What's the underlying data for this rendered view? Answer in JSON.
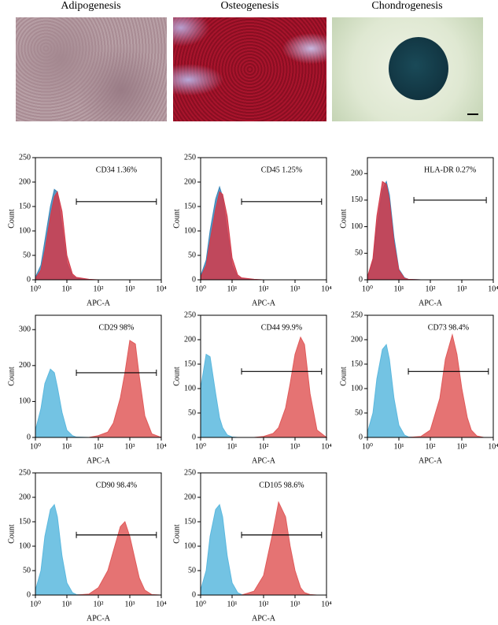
{
  "images": [
    {
      "title": "Adipogenesis"
    },
    {
      "title": "Osteogenesis"
    },
    {
      "title": "Chondrogenesis"
    }
  ],
  "chart_data": [
    {
      "type": "area",
      "annotation": "CD34 1.36%",
      "xlabel": "APC-A",
      "ylabel": "Count",
      "xscale": "log",
      "x": [
        1,
        1.5,
        2,
        3,
        4,
        5,
        7,
        10,
        15,
        20,
        50,
        100,
        200,
        300,
        500,
        700,
        1000,
        1500,
        2000,
        3000,
        5000,
        10000
      ],
      "series": [
        {
          "color": "#3a86b8",
          "values": [
            5,
            30,
            80,
            150,
            185,
            180,
            110,
            35,
            8,
            3,
            0,
            0,
            0,
            0,
            0,
            0,
            0,
            0,
            0,
            0,
            0,
            0
          ]
        },
        {
          "color": "#d23a4a",
          "values": [
            3,
            20,
            60,
            130,
            170,
            180,
            140,
            50,
            12,
            5,
            1,
            0,
            0,
            0,
            0,
            0,
            0,
            0,
            0,
            0,
            0,
            0
          ]
        }
      ],
      "gate": {
        "x": [
          20,
          7000
        ],
        "y": 160
      },
      "xlim": [
        1,
        10000
      ],
      "xticks": [
        {
          "value": 1,
          "label": "10⁰"
        },
        {
          "value": 10,
          "label": "10¹"
        },
        {
          "value": 100,
          "label": "10²"
        },
        {
          "value": 1000,
          "label": "10³"
        },
        {
          "value": 10000,
          "label": "10⁴"
        }
      ],
      "ylim": [
        0,
        250
      ],
      "yticks": [
        0,
        50,
        100,
        150,
        200,
        250
      ]
    },
    {
      "type": "area",
      "annotation": "CD45 1.25%",
      "xlabel": "APC-A",
      "ylabel": "Count",
      "xscale": "log",
      "x": [
        1,
        1.5,
        2,
        3,
        4,
        5,
        7,
        10,
        15,
        20,
        50,
        100,
        200,
        300,
        500,
        700,
        1000,
        1500,
        2000,
        3000,
        5000,
        10000
      ],
      "series": [
        {
          "color": "#3a86b8",
          "values": [
            8,
            40,
            100,
            165,
            190,
            170,
            100,
            30,
            6,
            2,
            0,
            0,
            0,
            0,
            0,
            0,
            0,
            0,
            0,
            0,
            0,
            0
          ]
        },
        {
          "color": "#d23a4a",
          "values": [
            5,
            30,
            80,
            145,
            180,
            175,
            130,
            45,
            10,
            4,
            1,
            0,
            0,
            0,
            0,
            0,
            0,
            0,
            0,
            0,
            0,
            0
          ]
        }
      ],
      "gate": {
        "x": [
          20,
          7000
        ],
        "y": 160
      },
      "xlim": [
        1,
        10000
      ],
      "xticks": [
        {
          "value": 1,
          "label": "10⁰"
        },
        {
          "value": 10,
          "label": "10¹"
        },
        {
          "value": 100,
          "label": "10²"
        },
        {
          "value": 1000,
          "label": "10³"
        },
        {
          "value": 10000,
          "label": "10⁴"
        }
      ],
      "ylim": [
        0,
        250
      ],
      "yticks": [
        0,
        50,
        100,
        150,
        200,
        250
      ]
    },
    {
      "type": "area",
      "annotation": "HLA-DR 0.27%",
      "xlabel": "APC-A",
      "ylabel": "Count",
      "xscale": "log",
      "x": [
        1,
        1.5,
        2,
        3,
        4,
        5,
        7,
        10,
        15,
        20,
        50,
        100,
        200,
        300,
        500,
        700,
        1000,
        1500,
        2000,
        3000,
        5000,
        10000
      ],
      "series": [
        {
          "color": "#3a86b8",
          "values": [
            5,
            35,
            100,
            170,
            185,
            160,
            80,
            20,
            4,
            1,
            0,
            0,
            0,
            0,
            0,
            0,
            0,
            0,
            0,
            0,
            0,
            0
          ]
        },
        {
          "color": "#d23a4a",
          "values": [
            5,
            40,
            120,
            185,
            180,
            150,
            70,
            18,
            3,
            1,
            0,
            0,
            0,
            0,
            0,
            0,
            0,
            0,
            0,
            0,
            0,
            0
          ]
        }
      ],
      "gate": {
        "x": [
          30,
          6000
        ],
        "y": 150
      },
      "xlim": [
        1,
        10000
      ],
      "xticks": [
        {
          "value": 1,
          "label": "10⁰"
        },
        {
          "value": 10,
          "label": "10¹"
        },
        {
          "value": 100,
          "label": "10²"
        },
        {
          "value": 1000,
          "label": "10³"
        },
        {
          "value": 10000,
          "label": "10⁴"
        }
      ],
      "ylim": [
        0,
        230
      ],
      "yticks": [
        0,
        50,
        100,
        150,
        200
      ]
    },
    {
      "type": "area",
      "annotation": "CD29 98%",
      "xlabel": "APC-A",
      "ylabel": "Count",
      "xscale": "log",
      "x": [
        1,
        1.5,
        2,
        3,
        4,
        5,
        7,
        10,
        15,
        20,
        50,
        100,
        200,
        300,
        500,
        700,
        1000,
        1500,
        2000,
        3000,
        5000,
        10000
      ],
      "series": [
        {
          "color": "#5bb8de",
          "values": [
            20,
            80,
            150,
            190,
            180,
            140,
            70,
            20,
            5,
            1,
            0,
            0,
            0,
            0,
            0,
            0,
            0,
            0,
            0,
            0,
            0,
            0
          ]
        },
        {
          "color": "#e05a5a",
          "values": [
            0,
            0,
            0,
            0,
            0,
            0,
            0,
            0,
            0,
            0,
            0,
            5,
            15,
            40,
            110,
            180,
            270,
            260,
            170,
            60,
            10,
            0
          ]
        }
      ],
      "gate": {
        "x": [
          20,
          7000
        ],
        "y": 180
      },
      "xlim": [
        1,
        10000
      ],
      "xticks": [
        {
          "value": 1,
          "label": "10⁰"
        },
        {
          "value": 10,
          "label": "10¹"
        },
        {
          "value": 100,
          "label": "10²"
        },
        {
          "value": 1000,
          "label": "10³"
        },
        {
          "value": 10000,
          "label": "10⁴"
        }
      ],
      "ylim": [
        0,
        340
      ],
      "yticks": [
        0,
        100,
        200,
        300
      ]
    },
    {
      "type": "area",
      "annotation": "CD44 99.9%",
      "xlabel": "APC-A",
      "ylabel": "Count",
      "xscale": "log",
      "x": [
        1,
        1.5,
        2,
        3,
        4,
        5,
        7,
        10,
        15,
        20,
        50,
        100,
        200,
        300,
        500,
        700,
        1000,
        1500,
        2000,
        3000,
        5000,
        10000
      ],
      "series": [
        {
          "color": "#5bb8de",
          "values": [
            100,
            170,
            165,
            90,
            40,
            20,
            5,
            1,
            0,
            0,
            0,
            0,
            0,
            0,
            0,
            0,
            0,
            0,
            0,
            0,
            0,
            0
          ]
        },
        {
          "color": "#e05a5a",
          "values": [
            0,
            0,
            0,
            0,
            0,
            0,
            0,
            0,
            0,
            0,
            0,
            2,
            8,
            20,
            60,
            110,
            170,
            205,
            190,
            90,
            15,
            0
          ]
        }
      ],
      "gate": {
        "x": [
          20,
          7000
        ],
        "y": 135
      },
      "xlim": [
        1,
        10000
      ],
      "xticks": [
        {
          "value": 1,
          "label": "10⁰"
        },
        {
          "value": 10,
          "label": "10¹"
        },
        {
          "value": 100,
          "label": "10²"
        },
        {
          "value": 1000,
          "label": "10³"
        },
        {
          "value": 10000,
          "label": "10⁴"
        }
      ],
      "ylim": [
        0,
        250
      ],
      "yticks": [
        0,
        50,
        100,
        150,
        200,
        250
      ]
    },
    {
      "type": "area",
      "annotation": "CD73 98.4%",
      "xlabel": "APC-A",
      "ylabel": "Count",
      "xscale": "log",
      "x": [
        1,
        1.5,
        2,
        3,
        4,
        5,
        7,
        10,
        15,
        20,
        50,
        100,
        200,
        300,
        500,
        700,
        1000,
        1500,
        2000,
        3000,
        5000,
        10000
      ],
      "series": [
        {
          "color": "#5bb8de",
          "values": [
            10,
            50,
            120,
            180,
            190,
            160,
            80,
            25,
            5,
            1,
            0,
            0,
            0,
            0,
            0,
            0,
            0,
            0,
            0,
            0,
            0,
            0
          ]
        },
        {
          "color": "#e05a5a",
          "values": [
            0,
            0,
            0,
            0,
            0,
            0,
            0,
            0,
            0,
            0,
            2,
            15,
            80,
            160,
            210,
            170,
            100,
            40,
            15,
            3,
            0,
            0
          ]
        }
      ],
      "gate": {
        "x": [
          20,
          7000
        ],
        "y": 135
      },
      "xlim": [
        1,
        10000
      ],
      "xticks": [
        {
          "value": 1,
          "label": "10⁰"
        },
        {
          "value": 10,
          "label": "10¹"
        },
        {
          "value": 100,
          "label": "10²"
        },
        {
          "value": 1000,
          "label": "10³"
        },
        {
          "value": 10000,
          "label": "10⁴"
        }
      ],
      "ylim": [
        0,
        250
      ],
      "yticks": [
        0,
        50,
        100,
        150,
        200,
        250
      ]
    },
    {
      "type": "area",
      "annotation": "CD90 98.4%",
      "xlabel": "APC-A",
      "ylabel": "Count",
      "xscale": "log",
      "x": [
        1,
        1.5,
        2,
        3,
        4,
        5,
        7,
        10,
        15,
        20,
        50,
        100,
        200,
        300,
        500,
        700,
        1000,
        1500,
        2000,
        3000,
        5000,
        10000
      ],
      "series": [
        {
          "color": "#5bb8de",
          "values": [
            10,
            50,
            120,
            175,
            185,
            160,
            80,
            25,
            5,
            1,
            0,
            0,
            0,
            0,
            0,
            0,
            0,
            0,
            0,
            0,
            0,
            0
          ]
        },
        {
          "color": "#e05a5a",
          "values": [
            0,
            0,
            0,
            0,
            0,
            0,
            0,
            0,
            0,
            0,
            2,
            15,
            50,
            90,
            140,
            150,
            120,
            70,
            35,
            10,
            1,
            0
          ]
        }
      ],
      "gate": {
        "x": [
          20,
          7000
        ],
        "y": 123
      },
      "xlim": [
        1,
        10000
      ],
      "xticks": [
        {
          "value": 1,
          "label": "10⁰"
        },
        {
          "value": 10,
          "label": "10¹"
        },
        {
          "value": 100,
          "label": "10²"
        },
        {
          "value": 1000,
          "label": "10³"
        },
        {
          "value": 10000,
          "label": "10⁴"
        }
      ],
      "ylim": [
        0,
        250
      ],
      "yticks": [
        0,
        50,
        100,
        150,
        200,
        250
      ]
    },
    {
      "type": "area",
      "annotation": "CD105 98.6%",
      "xlabel": "APC-A",
      "ylabel": "Count",
      "xscale": "log",
      "x": [
        1,
        1.5,
        2,
        3,
        4,
        5,
        7,
        10,
        15,
        20,
        50,
        100,
        200,
        300,
        500,
        700,
        1000,
        1500,
        2000,
        3000,
        5000,
        10000
      ],
      "series": [
        {
          "color": "#5bb8de",
          "values": [
            10,
            50,
            120,
            175,
            185,
            160,
            80,
            25,
            5,
            1,
            0,
            0,
            0,
            0,
            0,
            0,
            0,
            0,
            0,
            0,
            0,
            0
          ]
        },
        {
          "color": "#e05a5a",
          "values": [
            0,
            0,
            0,
            0,
            0,
            0,
            0,
            0,
            0,
            0,
            8,
            40,
            130,
            190,
            160,
            100,
            50,
            15,
            5,
            1,
            0,
            0
          ]
        }
      ],
      "gate": {
        "x": [
          20,
          7000
        ],
        "y": 123
      },
      "xlim": [
        1,
        10000
      ],
      "xticks": [
        {
          "value": 1,
          "label": "10⁰"
        },
        {
          "value": 10,
          "label": "10¹"
        },
        {
          "value": 100,
          "label": "10²"
        },
        {
          "value": 1000,
          "label": "10³"
        },
        {
          "value": 10000,
          "label": "10⁴"
        }
      ],
      "ylim": [
        0,
        250
      ],
      "yticks": [
        0,
        50,
        100,
        150,
        200,
        250
      ]
    }
  ]
}
